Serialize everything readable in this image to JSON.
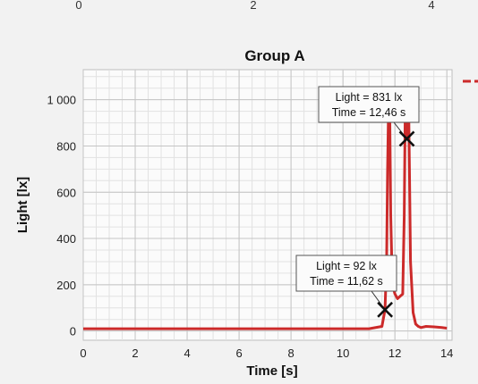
{
  "chart_data": {
    "type": "line",
    "title": "Group A",
    "xlabel": "Time [s]",
    "ylabel": "Light [lx]",
    "xlim": [
      0,
      14.2
    ],
    "ylim": [
      -40,
      1130
    ],
    "xticks": [
      0,
      2,
      4,
      6,
      8,
      10,
      12,
      14
    ],
    "xtick_labels": [
      "0",
      "2",
      "4",
      "6",
      "8",
      "10",
      "12",
      "14"
    ],
    "yticks": [
      0,
      200,
      400,
      600,
      800,
      1000
    ],
    "ytick_labels": [
      "0",
      "200",
      "400",
      "600",
      "800",
      "1 000"
    ],
    "grid": true,
    "series": [
      {
        "color": "#cc2a2a",
        "x": [
          0,
          2,
          4,
          6,
          8,
          10,
          11.0,
          11.5,
          11.62,
          11.68,
          11.72,
          11.76,
          11.8,
          11.84,
          11.9,
          12.0,
          12.1,
          12.2,
          12.3,
          12.36,
          12.4,
          12.46,
          12.52,
          12.56,
          12.6,
          12.7,
          12.8,
          12.9,
          13.0,
          13.2,
          13.5,
          13.8,
          14.0
        ],
        "y": [
          10,
          10,
          10,
          10,
          10,
          10,
          10,
          20,
          92,
          300,
          700,
          1000,
          950,
          500,
          200,
          160,
          140,
          150,
          160,
          500,
          1000,
          831,
          1050,
          700,
          300,
          80,
          30,
          20,
          15,
          20,
          18,
          15,
          12
        ]
      }
    ],
    "annotations": [
      {
        "lines": [
          "Light = 831 lx",
          "Time = 12,46 s"
        ],
        "x": 12.46,
        "y": 831
      },
      {
        "lines": [
          "Light = 92 lx",
          "Time = 11,62 s"
        ],
        "x": 11.62,
        "y": 92
      }
    ],
    "top_ticks": [
      "0",
      "2",
      "4"
    ]
  }
}
